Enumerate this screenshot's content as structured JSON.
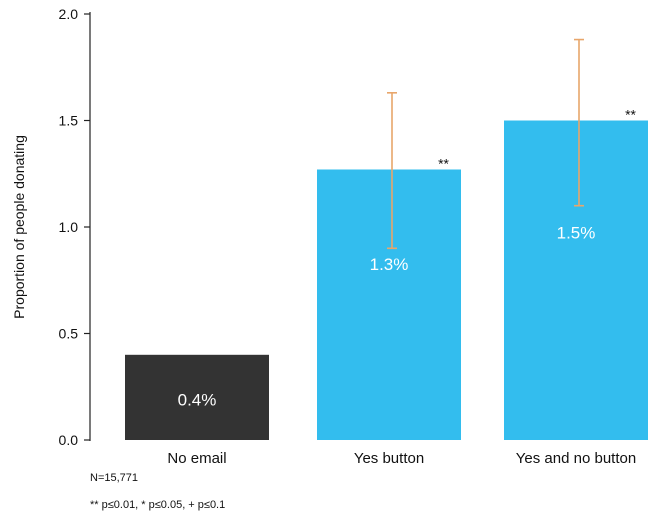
{
  "chart_data": {
    "type": "bar",
    "categories": [
      "No email",
      "Yes button",
      "Yes and no button"
    ],
    "values": [
      0.4,
      1.27,
      1.5
    ],
    "data_labels": [
      "0.4%",
      "1.3%",
      "1.5%"
    ],
    "error_bars": [
      null,
      [
        0.9,
        1.63
      ],
      [
        1.1,
        1.88
      ]
    ],
    "significance": [
      "",
      "**",
      "**"
    ],
    "bar_colors": [
      "#333333",
      "#33bdee",
      "#33bdee"
    ],
    "error_bar_color": "#e8a66b",
    "ylabel": "Proportion of people donating",
    "xlabel": "",
    "ylim": [
      0,
      2.0
    ],
    "yticks": [
      "0.0",
      "0.5",
      "1.0",
      "1.5",
      "2.0"
    ],
    "grid": false
  },
  "notes": {
    "sample_size": "N=15,771",
    "significance_key": "** p≤0.01, * p≤0.05, + p≤0.1"
  }
}
